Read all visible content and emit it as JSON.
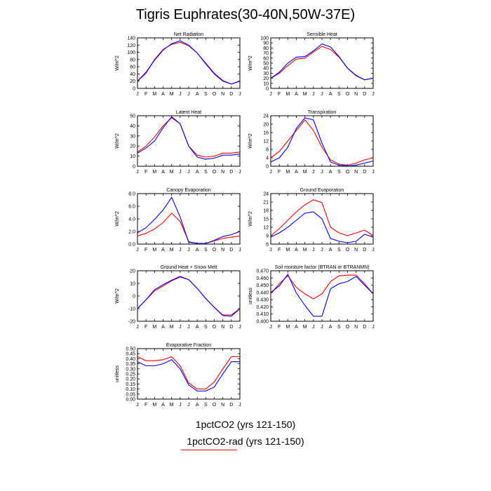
{
  "figure": {
    "title": "Tigris Euphrates(30-40N,50W-37E)",
    "legend": [
      {
        "label": "1pctCO2 (yrs 121-150)",
        "color": "#0000ff"
      },
      {
        "label": "1pctCO2-rad (yrs 121-150)",
        "color": "#ff0000"
      }
    ]
  },
  "chart_data": [
    {
      "type": "line",
      "title": "Net Radiation",
      "ylabel": "W/m^2",
      "x": [
        "J",
        "F",
        "M",
        "A",
        "M",
        "J",
        "J",
        "A",
        "S",
        "O",
        "N",
        "D",
        "J"
      ],
      "ylim": [
        0,
        140
      ],
      "yticks": [
        "0",
        "20",
        "40",
        "60",
        "80",
        "100",
        "120",
        "140"
      ],
      "series": [
        {
          "color": "#ff0000",
          "values": [
            20,
            42,
            80,
            108,
            122,
            128,
            118,
            98,
            70,
            42,
            22,
            12,
            20
          ]
        },
        {
          "color": "#0000ff",
          "values": [
            20,
            45,
            78,
            106,
            124,
            132,
            120,
            98,
            68,
            40,
            20,
            12,
            20
          ]
        }
      ]
    },
    {
      "type": "line",
      "title": "Sensible Heat",
      "ylabel": "W/m^2",
      "x": [
        "J",
        "F",
        "M",
        "A",
        "M",
        "J",
        "J",
        "A",
        "S",
        "O",
        "N",
        "D",
        "J"
      ],
      "ylim": [
        0,
        100
      ],
      "yticks": [
        "0",
        "10",
        "20",
        "30",
        "40",
        "50",
        "60",
        "70",
        "80",
        "90",
        "100"
      ],
      "series": [
        {
          "color": "#ff0000",
          "values": [
            20,
            30,
            45,
            58,
            60,
            72,
            83,
            77,
            62,
            40,
            26,
            17,
            20
          ]
        },
        {
          "color": "#0000ff",
          "values": [
            20,
            32,
            50,
            62,
            63,
            74,
            88,
            82,
            63,
            40,
            25,
            17,
            20
          ]
        }
      ]
    },
    {
      "type": "line",
      "title": "Latent Heat",
      "ylabel": "W/m^2",
      "x": [
        "J",
        "F",
        "M",
        "A",
        "M",
        "J",
        "J",
        "A",
        "S",
        "O",
        "N",
        "D",
        "J"
      ],
      "ylim": [
        0,
        50
      ],
      "yticks": [
        "0",
        "10",
        "20",
        "30",
        "40",
        "50"
      ],
      "series": [
        {
          "color": "#ff0000",
          "values": [
            14,
            20,
            29,
            40,
            48,
            42,
            20,
            11,
            9,
            10,
            13,
            13,
            14
          ]
        },
        {
          "color": "#0000ff",
          "values": [
            13,
            18,
            25,
            38,
            49,
            42,
            20,
            9,
            7,
            8,
            11,
            11,
            12
          ]
        }
      ]
    },
    {
      "type": "line",
      "title": "Transpiration",
      "ylabel": "W/m^2",
      "x": [
        "J",
        "F",
        "M",
        "A",
        "M",
        "J",
        "J",
        "A",
        "S",
        "O",
        "N",
        "D",
        "J"
      ],
      "ylim": [
        0,
        24
      ],
      "yticks": [
        "0",
        "4",
        "8",
        "12",
        "16",
        "20",
        "24"
      ],
      "series": [
        {
          "color": "#ff0000",
          "values": [
            4,
            7,
            12,
            17,
            22,
            17,
            9,
            3,
            1,
            0.5,
            1.5,
            3,
            4
          ]
        },
        {
          "color": "#0000ff",
          "values": [
            2,
            4,
            9,
            18,
            23,
            22,
            11,
            2,
            0.5,
            0.2,
            0.5,
            1.5,
            2.5
          ]
        }
      ]
    },
    {
      "type": "line",
      "title": "Canopy Evaporation",
      "ylabel": "W/m^2",
      "x": [
        "J",
        "F",
        "M",
        "A",
        "M",
        "J",
        "J",
        "A",
        "S",
        "O",
        "N",
        "D",
        "J"
      ],
      "ylim": [
        0,
        8
      ],
      "yticks": [
        "0.0",
        "2.0",
        "4.0",
        "6.0",
        "8.0"
      ],
      "series": [
        {
          "color": "#ff0000",
          "values": [
            1.3,
            1.7,
            2.4,
            3.4,
            4.9,
            3.6,
            0.4,
            0.1,
            0.1,
            0.5,
            0.9,
            1.1,
            1.3
          ]
        },
        {
          "color": "#0000ff",
          "values": [
            1.8,
            2.6,
            3.9,
            5.4,
            7.4,
            4.3,
            0.3,
            0.1,
            0.1,
            0.6,
            1.2,
            1.5,
            2.0
          ]
        }
      ]
    },
    {
      "type": "line",
      "title": "Ground Evaporation",
      "ylabel": "W/m^2",
      "x": [
        "J",
        "F",
        "M",
        "A",
        "M",
        "J",
        "J",
        "A",
        "S",
        "O",
        "N",
        "D",
        "J"
      ],
      "ylim": [
        6,
        24
      ],
      "yticks": [
        "6",
        "9",
        "12",
        "15",
        "18",
        "21",
        "24"
      ],
      "series": [
        {
          "color": "#ff0000",
          "values": [
            9,
            11.5,
            14.5,
            17.5,
            20,
            21.8,
            20.8,
            12,
            10,
            9,
            10,
            11,
            9
          ]
        },
        {
          "color": "#0000ff",
          "values": [
            8.5,
            10,
            12,
            14.5,
            17,
            17.5,
            15,
            8,
            7,
            6.5,
            7,
            9.5,
            8.5
          ]
        }
      ]
    },
    {
      "type": "line",
      "title": "Ground Heat + Snow Melt",
      "ylabel": "W/m^2",
      "x": [
        "J",
        "F",
        "M",
        "A",
        "M",
        "J",
        "J",
        "A",
        "S",
        "O",
        "N",
        "D",
        "J"
      ],
      "ylim": [
        -20,
        20
      ],
      "yticks": [
        "-20",
        "-10",
        "0",
        "10",
        "20"
      ],
      "series": [
        {
          "color": "#ff0000",
          "values": [
            -10,
            -3,
            4,
            8,
            12,
            15,
            13,
            6,
            -2,
            -9,
            -15,
            -15,
            -10
          ]
        },
        {
          "color": "#0000ff",
          "values": [
            -10,
            -3,
            5,
            9,
            12.5,
            15.5,
            13,
            6,
            -2,
            -9,
            -15.5,
            -16,
            -10
          ]
        }
      ]
    },
    {
      "type": "line",
      "title": "Soil moisture factor (BTRAN or BTRANMN)",
      "ylabel": "unitless",
      "x": [
        "J",
        "F",
        "M",
        "A",
        "M",
        "J",
        "J",
        "A",
        "S",
        "O",
        "N",
        "D",
        "J"
      ],
      "ylim": [
        0.4,
        0.47
      ],
      "yticks": [
        "0.400",
        "0.410",
        "0.420",
        "0.430",
        "0.440",
        "0.450",
        "0.460",
        "0.470"
      ],
      "series": [
        {
          "color": "#ff0000",
          "values": [
            0.438,
            0.452,
            0.463,
            0.447,
            0.438,
            0.431,
            0.438,
            0.455,
            0.463,
            0.464,
            0.464,
            0.452,
            0.438
          ]
        },
        {
          "color": "#0000ff",
          "values": [
            0.44,
            0.449,
            0.465,
            0.439,
            0.422,
            0.407,
            0.407,
            0.445,
            0.452,
            0.455,
            0.462,
            0.45,
            0.438
          ]
        }
      ]
    },
    {
      "type": "line",
      "title": "Evaporative Fraction",
      "ylabel": "unitless",
      "x": [
        "J",
        "F",
        "M",
        "A",
        "M",
        "J",
        "J",
        "A",
        "S",
        "O",
        "N",
        "D",
        "J"
      ],
      "ylim": [
        0,
        0.5
      ],
      "yticks": [
        "0.00",
        "0.05",
        "0.10",
        "0.15",
        "0.20",
        "0.25",
        "0.30",
        "0.35",
        "0.40",
        "0.45",
        "0.50"
      ],
      "series": [
        {
          "color": "#ff0000",
          "values": [
            0.42,
            0.38,
            0.38,
            0.39,
            0.42,
            0.33,
            0.16,
            0.1,
            0.1,
            0.17,
            0.3,
            0.42,
            0.42
          ]
        },
        {
          "color": "#0000ff",
          "values": [
            0.37,
            0.33,
            0.33,
            0.35,
            0.39,
            0.3,
            0.14,
            0.08,
            0.08,
            0.12,
            0.25,
            0.37,
            0.37
          ]
        }
      ]
    }
  ]
}
